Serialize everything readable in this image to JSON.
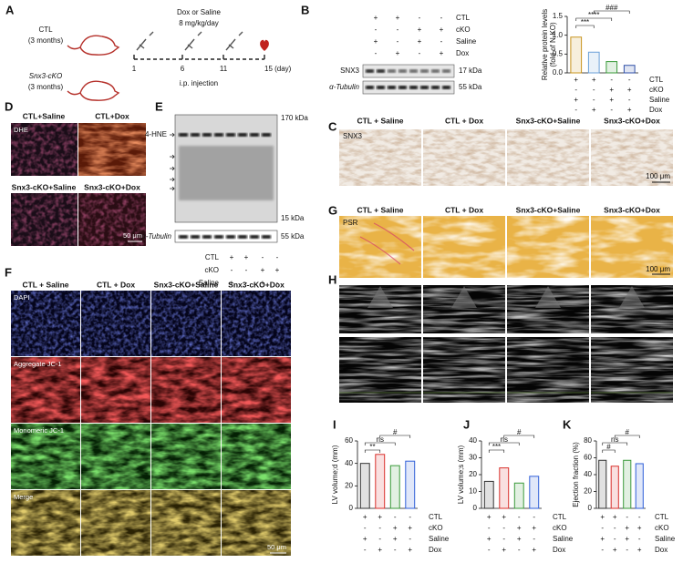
{
  "panels": {
    "a": {
      "letter": "A",
      "groups": [
        {
          "name": "CTL",
          "age": "(3 months)"
        },
        {
          "name": "Snx3-cKO",
          "age": "(3 months)"
        }
      ],
      "treatment": "Dox or Saline",
      "dose": "8 mg/kg/day",
      "days": [
        "1",
        "6",
        "11",
        "15 (day)"
      ],
      "route": "i.p. injection"
    },
    "b": {
      "letter": "B",
      "conditions": [
        {
          "label": "CTL",
          "signs": [
            "+",
            "+",
            "-",
            "-"
          ]
        },
        {
          "label": "cKO",
          "signs": [
            "-",
            "-",
            "+",
            "+"
          ]
        },
        {
          "label": "Saline",
          "signs": [
            "+",
            "-",
            "+",
            "-"
          ]
        },
        {
          "label": "Dox",
          "signs": [
            "-",
            "+",
            "-",
            "+"
          ]
        }
      ],
      "bands": [
        {
          "name": "SNX3",
          "size": "17 kDa"
        },
        {
          "name": "α-Tubulin",
          "size": "55 kDa"
        }
      ]
    },
    "c": {
      "letter": "C",
      "columns": [
        "CTL + Saline",
        "CTL + Dox",
        "Snx3-cKO+Saline",
        "Snx3-cKO+Dox"
      ],
      "stain": "SNX3",
      "scale": "100 μm"
    },
    "d": {
      "letter": "D",
      "columns": [
        "CTL+Saline",
        "CTL+Dox",
        "Snx3-cKO+Saline",
        "Snx3-cKO+Dox"
      ],
      "stain": "DHE",
      "scale": "50 μm"
    },
    "e": {
      "letter": "E",
      "target": "4-HNE",
      "upper": "170 kDa",
      "lower": "15 kDa",
      "loading": "α-Tubulin",
      "loading_size": "55 kDa",
      "conditions": [
        {
          "label": "CTL",
          "signs": [
            "+",
            "+",
            "-",
            "-"
          ]
        },
        {
          "label": "cKO",
          "signs": [
            "-",
            "-",
            "+",
            "+"
          ]
        },
        {
          "label": "Saline",
          "signs": [
            "+",
            "-",
            "+",
            "-"
          ]
        },
        {
          "label": "Dox",
          "signs": [
            "-",
            "+",
            "-",
            "+"
          ]
        }
      ]
    },
    "f": {
      "letter": "F",
      "columns": [
        "CTL + Saline",
        "CTL + Dox",
        "Snx3-cKO+Saline",
        "Snx3-cKO+Dox"
      ],
      "rows": [
        "DAPI",
        "Aggregate JC-1",
        "Monomeric JC-1",
        "Merge"
      ],
      "scale": "50 μm"
    },
    "g": {
      "letter": "G",
      "columns": [
        "CTL + Saline",
        "CTL + Dox",
        "Snx3-cKO+Saline",
        "Snx3-cKO+Dox"
      ],
      "stain": "PSR",
      "scale": "100 μm"
    },
    "h": {
      "letter": "H"
    },
    "i": {
      "letter": "I"
    },
    "j": {
      "letter": "J"
    },
    "k": {
      "letter": "K"
    }
  },
  "chart_data": [
    {
      "type": "bar",
      "ylabel": [
        "Relative protein levels",
        "(fold of N-KO)"
      ],
      "values": [
        0.95,
        0.55,
        0.3,
        0.2
      ],
      "colors": [
        "#c8941e",
        "#6aa0d8",
        "#3a9a3a",
        "#2f4fa8"
      ],
      "ylim": [
        0,
        1.5
      ],
      "yticks": [
        {
          "value": 0,
          "label": "0.0"
        },
        {
          "value": 0.5,
          "label": "0.5"
        },
        {
          "value": 1,
          "label": "1.0"
        },
        {
          "value": 1.5,
          "label": "1.5"
        }
      ],
      "annotations": [
        "***",
        "****",
        "###"
      ],
      "conditions": [
        {
          "label": "CTL",
          "signs": [
            "+",
            "+",
            "-",
            "-"
          ]
        },
        {
          "label": "cKO",
          "signs": [
            "-",
            "-",
            "+",
            "+"
          ]
        },
        {
          "label": "Saline",
          "signs": [
            "+",
            "-",
            "+",
            "-"
          ]
        },
        {
          "label": "Dox",
          "signs": [
            "-",
            "+",
            "-",
            "+"
          ]
        }
      ]
    },
    {
      "type": "bar",
      "ylabel": [
        "LV volume;d (mm)"
      ],
      "values": [
        40,
        48,
        38,
        42
      ],
      "colors": [
        "#333333",
        "#d9302c",
        "#3a9a3a",
        "#2f5fd8"
      ],
      "ylim": [
        0,
        60
      ],
      "yticks": [
        0,
        20,
        40,
        60
      ],
      "annotations": [
        "**",
        "ns",
        "#"
      ],
      "conditions": [
        {
          "label": "CTL",
          "signs": [
            "+",
            "+",
            "-",
            "-"
          ]
        },
        {
          "label": "cKO",
          "signs": [
            "-",
            "-",
            "+",
            "+"
          ]
        },
        {
          "label": "Saline",
          "signs": [
            "+",
            "-",
            "+",
            "-"
          ]
        },
        {
          "label": "Dox",
          "signs": [
            "-",
            "+",
            "-",
            "+"
          ]
        }
      ]
    },
    {
      "type": "bar",
      "ylabel": [
        "LV volume;s (mm)"
      ],
      "values": [
        16,
        24,
        15,
        19
      ],
      "colors": [
        "#333333",
        "#d9302c",
        "#3a9a3a",
        "#2f5fd8"
      ],
      "ylim": [
        0,
        40
      ],
      "yticks": [
        0,
        10,
        20,
        30,
        40
      ],
      "annotations": [
        "***",
        "ns",
        "#"
      ],
      "conditions": [
        {
          "label": "CTL",
          "signs": [
            "+",
            "+",
            "-",
            "-"
          ]
        },
        {
          "label": "cKO",
          "signs": [
            "-",
            "-",
            "+",
            "+"
          ]
        },
        {
          "label": "Saline",
          "signs": [
            "+",
            "-",
            "+",
            "-"
          ]
        },
        {
          "label": "Dox",
          "signs": [
            "-",
            "+",
            "-",
            "+"
          ]
        }
      ]
    },
    {
      "type": "bar",
      "ylabel": [
        "Ejection fraction (%)"
      ],
      "values": [
        57,
        50,
        57,
        53
      ],
      "colors": [
        "#333333",
        "#d9302c",
        "#3a9a3a",
        "#2f5fd8"
      ],
      "ylim": [
        0,
        80
      ],
      "yticks": [
        0,
        20,
        40,
        60,
        80
      ],
      "annotations": [
        "#",
        "ns",
        "#"
      ],
      "conditions": [
        {
          "label": "CTL",
          "signs": [
            "+",
            "+",
            "-",
            "-"
          ]
        },
        {
          "label": "cKO",
          "signs": [
            "-",
            "-",
            "+",
            "+"
          ]
        },
        {
          "label": "Saline",
          "signs": [
            "+",
            "-",
            "+",
            "-"
          ]
        },
        {
          "label": "Dox",
          "signs": [
            "-",
            "+",
            "-",
            "+"
          ]
        }
      ]
    }
  ]
}
